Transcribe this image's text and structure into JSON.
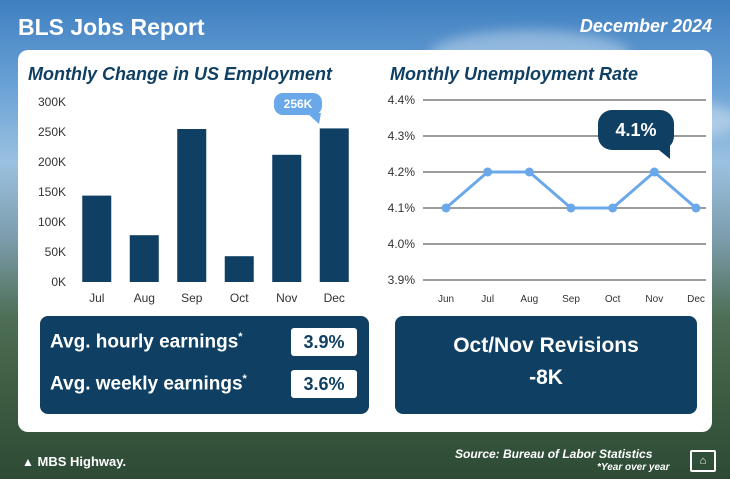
{
  "header": {
    "title": "BLS Jobs Report",
    "date": "December 2024"
  },
  "employment_chart": {
    "title": "Monthly Change in US Employment",
    "callout": "256K"
  },
  "unemployment_chart": {
    "title": "Monthly Unemployment Rate",
    "callout": "4.1%"
  },
  "earnings": {
    "hourly_label": "Avg. hourly earnings",
    "hourly_value": "3.9%",
    "weekly_label": "Avg. weekly earnings",
    "weekly_value": "3.6%",
    "asterisk": "*"
  },
  "revisions": {
    "label": "Oct/Nov Revisions",
    "value": "-8K"
  },
  "footer": {
    "brand": "MBS Highway.",
    "source": "Source: Bureau of Labor Statistics",
    "note": "*Year over year"
  },
  "colors": {
    "navy": "#0f3f62",
    "accent": "#6aa8ea",
    "grid": "#3a3a3a"
  },
  "chart_data": [
    {
      "type": "bar",
      "title": "Monthly Change in US Employment",
      "categories": [
        "Jul",
        "Aug",
        "Sep",
        "Oct",
        "Nov",
        "Dec"
      ],
      "values": [
        144000,
        78000,
        255000,
        43000,
        212000,
        256000
      ],
      "ylim": [
        0,
        300000
      ],
      "yticks": [
        0,
        50000,
        100000,
        150000,
        200000,
        250000,
        300000
      ],
      "ytick_labels": [
        "0K",
        "50K",
        "100K",
        "150K",
        "200K",
        "250K",
        "300K"
      ],
      "xlabel": "",
      "ylabel": "",
      "grid": false
    },
    {
      "type": "line",
      "title": "Monthly Unemployment Rate",
      "categories": [
        "Jun",
        "Jul",
        "Aug",
        "Sep",
        "Oct",
        "Nov",
        "Dec"
      ],
      "values": [
        4.1,
        4.2,
        4.2,
        4.1,
        4.1,
        4.2,
        4.1
      ],
      "ylim": [
        3.9,
        4.4
      ],
      "yticks": [
        3.9,
        4.0,
        4.1,
        4.2,
        4.3,
        4.4
      ],
      "ytick_labels": [
        "3.9%",
        "4.0%",
        "4.1%",
        "4.2%",
        "4.3%",
        "4.4%"
      ],
      "xlabel": "",
      "ylabel": "",
      "grid": true
    }
  ]
}
